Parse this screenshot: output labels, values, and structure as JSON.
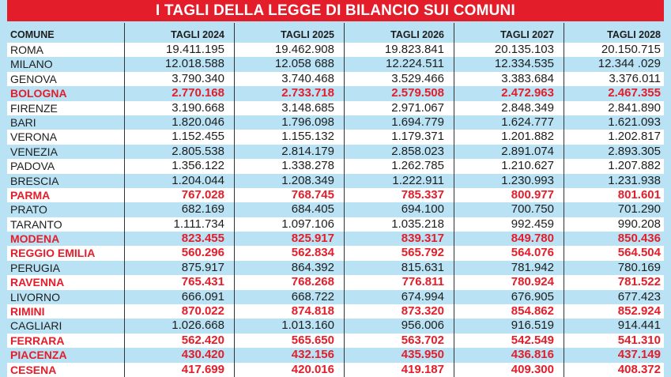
{
  "title": "I TAGLI DELLA LEGGE DI BILANCIO SUI COMUNI",
  "colors": {
    "title_bg": "#e31e2a",
    "highlight": "#e31e2a",
    "row_alt": "#b9e2f5"
  },
  "headers": [
    "COMUNE",
    "TAGLI 2024",
    "TAGLI 2025",
    "TAGLI 2026",
    "TAGLI 2027",
    "TAGLI 2028"
  ],
  "rows": [
    {
      "name": "ROMA",
      "highlight": false,
      "values": [
        "19.411.195",
        "19.462.908",
        "19.823.841",
        "20.135.103",
        "20.150.715"
      ]
    },
    {
      "name": "MILANO",
      "highlight": false,
      "values": [
        "12.018.588",
        "12.058 688",
        "12.224.511",
        "12.334.535",
        "12.344 .029"
      ]
    },
    {
      "name": "GENOVA",
      "highlight": false,
      "values": [
        "3.790.340",
        "3.740.468",
        "3.529.466",
        "3.383.684",
        "3.376.011"
      ]
    },
    {
      "name": "BOLOGNA",
      "highlight": true,
      "values": [
        "2.770.168",
        "2.733.718",
        "2.579.508",
        "2.472.963",
        "2.467.355"
      ]
    },
    {
      "name": "FIRENZE",
      "highlight": false,
      "values": [
        "3.190.668",
        "3.148.685",
        "2.971.067",
        "2.848.349",
        "2.841.890"
      ]
    },
    {
      "name": "BARI",
      "highlight": false,
      "values": [
        "1.820.046",
        "1.796.098",
        "1.694.779",
        "1.624.777",
        "1.621.093"
      ]
    },
    {
      "name": "VERONA",
      "highlight": false,
      "values": [
        "1.152.455",
        "1.155.132",
        "1.179.371",
        "1.201.882",
        "1.202.817"
      ]
    },
    {
      "name": "VENEZIA",
      "highlight": false,
      "values": [
        "2.805.538",
        "2.814.179",
        "2.858.023",
        "2.891.074",
        "2.893.305"
      ]
    },
    {
      "name": "PADOVA",
      "highlight": false,
      "values": [
        "1.356.122",
        "1.338.278",
        "1.262.785",
        "1.210.627",
        "1.207.882"
      ]
    },
    {
      "name": "BRESCIA",
      "highlight": false,
      "values": [
        "1.204.044",
        "1.208.349",
        "1.222.911",
        "1.230.993",
        "1.231.938"
      ]
    },
    {
      "name": "PARMA",
      "highlight": true,
      "values": [
        "767.028",
        "768.745",
        "785.337",
        "800.977",
        "801.601"
      ]
    },
    {
      "name": "PRATO",
      "highlight": false,
      "values": [
        "682.169",
        "684.405",
        "694.100",
        "700.750",
        "701.290"
      ]
    },
    {
      "name": "TARANTO",
      "highlight": false,
      "values": [
        "1.111.734",
        "1.097.106",
        "1.035.218",
        "992.459",
        "990.208"
      ]
    },
    {
      "name": "MODENA",
      "highlight": true,
      "values": [
        "823.455",
        "825.917",
        "839.317",
        "849.780",
        "850.436"
      ]
    },
    {
      "name": "REGGIO EMILIA",
      "highlight": true,
      "values": [
        "560.296",
        "562.834",
        "565.792",
        "564.076",
        "564.504"
      ]
    },
    {
      "name": "PERUGIA",
      "highlight": false,
      "values": [
        "875.917",
        "864.392",
        "815.631",
        "781.942",
        "780.169"
      ]
    },
    {
      "name": "RAVENNA",
      "highlight": true,
      "values": [
        "765.431",
        "768.268",
        "776.811",
        "780.924",
        "781.522"
      ]
    },
    {
      "name": "LIVORNO",
      "highlight": false,
      "values": [
        "666.091",
        "668.722",
        "674.994",
        "676.905",
        "677.423"
      ]
    },
    {
      "name": "RIMINI",
      "highlight": true,
      "values": [
        "870.022",
        "874.818",
        "873.320",
        "854.862",
        "852.924"
      ]
    },
    {
      "name": "CAGLIARI",
      "highlight": false,
      "values": [
        "1.026.668",
        "1.013.160",
        "956.006",
        "916.519",
        "914.441"
      ]
    },
    {
      "name": "FERRARA",
      "highlight": true,
      "values": [
        "562.420",
        "565.650",
        "563.702",
        "542.549",
        "541.310"
      ]
    },
    {
      "name": "PIACENZA",
      "highlight": true,
      "values": [
        "430.420",
        "432.156",
        "435.950",
        "436.816",
        "437.149"
      ]
    },
    {
      "name": "CESENA",
      "highlight": true,
      "values": [
        "417.699",
        "420.016",
        "419.187",
        "409.300",
        "408.372"
      ]
    }
  ]
}
